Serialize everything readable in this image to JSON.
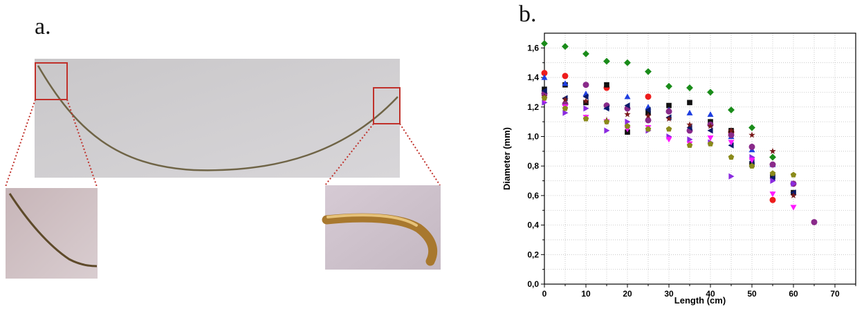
{
  "panel_a": {
    "label": "a.",
    "photo_description_icon": "hair-strand-photo-icon"
  },
  "panel_b": {
    "label": "b."
  },
  "chart_data": {
    "type": "scatter",
    "title": "",
    "xlabel": "Length (cm)",
    "ylabel": "Diameter (mm)",
    "xlim": [
      0,
      75
    ],
    "ylim": [
      0,
      1.7
    ],
    "xticks": [
      "0",
      "10",
      "20",
      "30",
      "40",
      "50",
      "60",
      "70"
    ],
    "yticks": [
      "0,0",
      "0,2",
      "0,4",
      "0,6",
      "0,8",
      "1,0",
      "1,2",
      "1,4",
      "1,6"
    ],
    "grid": true,
    "series": [
      {
        "marker": "diamond",
        "color": "#1a8c1a",
        "x": [
          0,
          5,
          10,
          15,
          20,
          25,
          30,
          35,
          40,
          45,
          50,
          55
        ],
        "y": [
          1.63,
          1.61,
          1.56,
          1.51,
          1.5,
          1.44,
          1.34,
          1.33,
          1.3,
          1.18,
          1.06,
          0.86
        ]
      },
      {
        "marker": "circle",
        "color": "#ee1c1c",
        "x": [
          0,
          5,
          15,
          25,
          45,
          55
        ],
        "y": [
          1.43,
          1.41,
          1.33,
          1.27,
          1.03,
          0.57
        ]
      },
      {
        "marker": "square",
        "color": "#111111",
        "x": [
          0,
          5,
          10,
          15,
          20,
          25,
          30,
          35,
          40,
          45,
          50,
          55,
          60
        ],
        "y": [
          1.32,
          1.35,
          1.23,
          1.35,
          1.03,
          1.16,
          1.21,
          1.23,
          1.1,
          1.04,
          0.81,
          0.73,
          0.62
        ]
      },
      {
        "marker": "triangle-up",
        "color": "#1f3fe0",
        "x": [
          0,
          5,
          10,
          15,
          20,
          25,
          30,
          35,
          40,
          45,
          50,
          55
        ],
        "y": [
          1.4,
          1.36,
          1.29,
          1.2,
          1.27,
          1.2,
          1.18,
          1.16,
          1.15,
          1.0,
          0.91,
          0.81
        ]
      },
      {
        "marker": "circle",
        "color": "#8a2a8a",
        "x": [
          0,
          5,
          10,
          15,
          20,
          25,
          30,
          35,
          40,
          45,
          50,
          55,
          60,
          65
        ],
        "y": [
          1.29,
          1.22,
          1.35,
          1.21,
          1.19,
          1.11,
          1.17,
          1.04,
          1.08,
          1.01,
          0.93,
          0.81,
          0.68,
          0.42
        ]
      },
      {
        "marker": "triangle-left",
        "color": "#0a1a6a",
        "x": [
          0,
          5,
          10,
          15,
          20,
          25,
          30,
          35,
          40,
          45,
          50,
          55,
          60
        ],
        "y": [
          1.31,
          1.26,
          1.27,
          1.19,
          1.21,
          1.18,
          1.13,
          1.06,
          1.04,
          0.94,
          0.83,
          0.72,
          0.62
        ]
      },
      {
        "marker": "star",
        "color": "#7a1a1a",
        "x": [
          0,
          5,
          10,
          15,
          20,
          25,
          30,
          35,
          40,
          45,
          50,
          55,
          60
        ],
        "y": [
          1.27,
          1.25,
          1.24,
          1.11,
          1.15,
          1.14,
          1.12,
          1.08,
          1.07,
          1.04,
          1.01,
          0.9,
          0.6
        ]
      },
      {
        "marker": "triangle-right",
        "color": "#8a2ae0",
        "x": [
          0,
          5,
          10,
          15,
          20,
          25,
          30,
          35,
          40,
          45,
          50,
          55,
          60
        ],
        "y": [
          1.23,
          1.16,
          1.19,
          1.04,
          1.1,
          1.04,
          1.0,
          0.98,
          0.96,
          0.73,
          0.86,
          0.7,
          0.68
        ]
      },
      {
        "marker": "triangle-down",
        "color": "#ff1aff",
        "x": [
          0,
          5,
          10,
          15,
          20,
          25,
          30,
          35,
          40,
          45,
          50,
          55,
          60
        ],
        "y": [
          1.25,
          1.2,
          1.13,
          1.1,
          1.05,
          1.06,
          0.98,
          0.95,
          0.99,
          0.96,
          0.84,
          0.61,
          0.52
        ]
      },
      {
        "marker": "pentagon",
        "color": "#8a8a1a",
        "x": [
          0,
          5,
          10,
          15,
          20,
          25,
          30,
          35,
          40,
          45,
          50,
          55,
          60
        ],
        "y": [
          1.26,
          1.19,
          1.12,
          1.1,
          1.07,
          1.05,
          1.05,
          0.94,
          0.95,
          0.86,
          0.8,
          0.75,
          0.74
        ]
      }
    ]
  }
}
